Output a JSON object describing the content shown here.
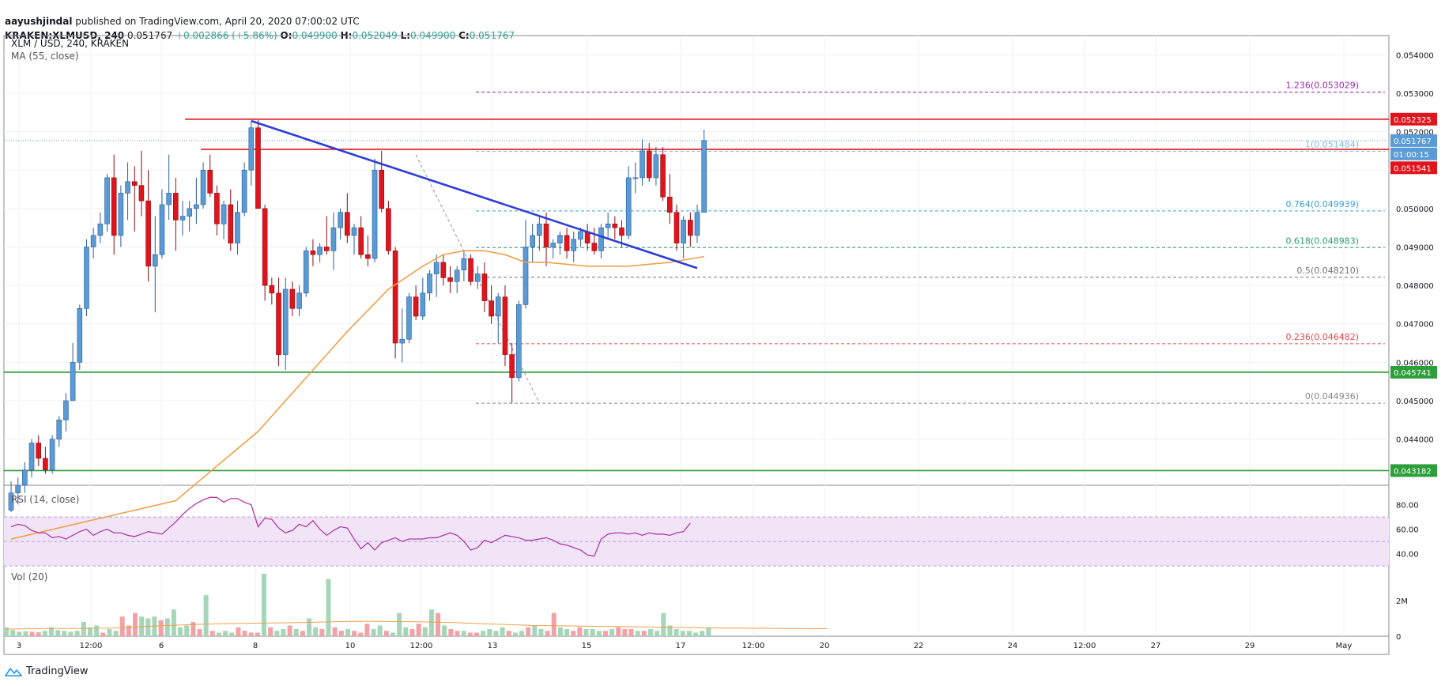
{
  "header": {
    "author": "aayushjindal",
    "published": " published on TradingView.com, April 20, 2020 07:00:02 UTC",
    "symbol": "KRAKEN:XLMUSD, 240",
    "price": " 0.051767 ",
    "change": "+0.002866 (+5.86%)",
    "o_label": "O:",
    "o_value": "0.049900",
    "h_label": "H:",
    "h_value": "0.052049",
    "l_label": "L:",
    "l_value": "0.049900",
    "c_label": "C:",
    "c_value": "0.051767"
  },
  "footer": {
    "brand": "TradingView"
  },
  "colors": {
    "up": "#5b9bd5",
    "down": "#e0141c",
    "ma": "#f0a04b",
    "trendline": "#2d3ed6",
    "resistance": "#e0141c",
    "support": "#2e9e3a",
    "rsi_line": "#b03aa8",
    "rsi_band": "#f1e4f7",
    "vol_up": "#a5d6b8",
    "vol_down": "#f0a3a6"
  },
  "chart_data": [
    {
      "type": "candlestick",
      "title": "XLM / USD, 240, KRAKEN",
      "indicator": "MA (55, close)",
      "ylim": [
        0.0428,
        0.0545
      ],
      "y_ticks": [
        "0.054000",
        "0.053000",
        "0.052000",
        "0.051000",
        "0.050000",
        "0.049000",
        "0.048000",
        "0.047000",
        "0.046000",
        "0.045000",
        "0.044000"
      ],
      "x_ticks": [
        "3",
        "12:00",
        "6",
        "8",
        "10",
        "12:00",
        "13",
        "15",
        "17",
        "12:00",
        "20",
        "22",
        "24",
        "12:00",
        "27",
        "29",
        "May"
      ],
      "candles": [
        [
          0.04215,
          0.0429,
          0.0421,
          0.0426
        ],
        [
          0.0426,
          0.043,
          0.0423,
          0.0428
        ],
        [
          0.0428,
          0.0434,
          0.0426,
          0.0432
        ],
        [
          0.0432,
          0.044,
          0.043,
          0.0439
        ],
        [
          0.0439,
          0.0441,
          0.0433,
          0.0435
        ],
        [
          0.0435,
          0.0438,
          0.0431,
          0.0432
        ],
        [
          0.0432,
          0.0441,
          0.0431,
          0.044
        ],
        [
          0.044,
          0.0446,
          0.0438,
          0.0445
        ],
        [
          0.0445,
          0.0452,
          0.0442,
          0.045
        ],
        [
          0.045,
          0.0465,
          0.045,
          0.046
        ],
        [
          0.046,
          0.0475,
          0.0458,
          0.0474
        ],
        [
          0.0474,
          0.0492,
          0.0472,
          0.049
        ],
        [
          0.049,
          0.0495,
          0.0487,
          0.0493
        ],
        [
          0.0493,
          0.0499,
          0.0491,
          0.0496
        ],
        [
          0.0496,
          0.0509,
          0.0494,
          0.0508
        ],
        [
          0.0508,
          0.0514,
          0.0488,
          0.0493
        ],
        [
          0.0493,
          0.0506,
          0.049,
          0.0504
        ],
        [
          0.0504,
          0.0512,
          0.0497,
          0.0507
        ],
        [
          0.0507,
          0.0511,
          0.0494,
          0.0506
        ],
        [
          0.0506,
          0.0515,
          0.0498,
          0.0502
        ],
        [
          0.0502,
          0.051,
          0.0481,
          0.0485
        ],
        [
          0.0485,
          0.0498,
          0.0473,
          0.0488
        ],
        [
          0.0488,
          0.0505,
          0.0487,
          0.0501
        ],
        [
          0.0501,
          0.0514,
          0.0497,
          0.0504
        ],
        [
          0.0504,
          0.0508,
          0.0489,
          0.0497
        ],
        [
          0.0497,
          0.0502,
          0.0493,
          0.0498
        ],
        [
          0.0498,
          0.0502,
          0.0494,
          0.05
        ],
        [
          0.05,
          0.0508,
          0.0496,
          0.0501
        ],
        [
          0.0501,
          0.0512,
          0.05,
          0.051
        ],
        [
          0.051,
          0.0514,
          0.0503,
          0.0504
        ],
        [
          0.0504,
          0.0506,
          0.0493,
          0.0496
        ],
        [
          0.0496,
          0.0502,
          0.0492,
          0.0501
        ],
        [
          0.0501,
          0.0505,
          0.0489,
          0.0491
        ],
        [
          0.0491,
          0.0502,
          0.0488,
          0.0499
        ],
        [
          0.0499,
          0.0512,
          0.0498,
          0.051
        ],
        [
          0.051,
          0.05228,
          0.0506,
          0.0521
        ],
        [
          0.0521,
          0.0523,
          0.05,
          0.05
        ],
        [
          0.05,
          0.0501,
          0.0476,
          0.048
        ],
        [
          0.048,
          0.0482,
          0.0475,
          0.0478
        ],
        [
          0.0478,
          0.0482,
          0.0459,
          0.0462
        ],
        [
          0.0462,
          0.0482,
          0.0458,
          0.0479
        ],
        [
          0.0479,
          0.0481,
          0.0472,
          0.0474
        ],
        [
          0.0474,
          0.048,
          0.0472,
          0.0478
        ],
        [
          0.0478,
          0.049,
          0.0477,
          0.0489
        ],
        [
          0.0489,
          0.0492,
          0.0485,
          0.0488
        ],
        [
          0.0488,
          0.0491,
          0.0486,
          0.049
        ],
        [
          0.049,
          0.0498,
          0.0488,
          0.0489
        ],
        [
          0.0489,
          0.0499,
          0.0484,
          0.0495
        ],
        [
          0.0495,
          0.05,
          0.0492,
          0.0499
        ],
        [
          0.0499,
          0.0504,
          0.0491,
          0.0493
        ],
        [
          0.0493,
          0.0496,
          0.0488,
          0.0495
        ],
        [
          0.0495,
          0.0498,
          0.0487,
          0.0488
        ],
        [
          0.0488,
          0.0493,
          0.0485,
          0.0487
        ],
        [
          0.0487,
          0.0513,
          0.0486,
          0.051
        ],
        [
          0.051,
          0.0515,
          0.0499,
          0.05
        ],
        [
          0.05,
          0.0502,
          0.0488,
          0.0489
        ],
        [
          0.0489,
          0.049,
          0.0461,
          0.0465
        ],
        [
          0.0465,
          0.0474,
          0.046,
          0.0466
        ],
        [
          0.0466,
          0.0478,
          0.0465,
          0.0477
        ],
        [
          0.0477,
          0.048,
          0.0471,
          0.0472
        ],
        [
          0.0472,
          0.0482,
          0.0471,
          0.0478
        ],
        [
          0.0478,
          0.0484,
          0.0476,
          0.0483
        ],
        [
          0.0483,
          0.0488,
          0.0477,
          0.0486
        ],
        [
          0.0486,
          0.0488,
          0.048,
          0.0482
        ],
        [
          0.0482,
          0.0485,
          0.0478,
          0.0481
        ],
        [
          0.0481,
          0.0485,
          0.0478,
          0.0484
        ],
        [
          0.0484,
          0.0489,
          0.0481,
          0.0487
        ],
        [
          0.0487,
          0.0488,
          0.048,
          0.0481
        ],
        [
          0.0481,
          0.0485,
          0.0479,
          0.0483
        ],
        [
          0.0483,
          0.0486,
          0.0473,
          0.0476
        ],
        [
          0.0476,
          0.048,
          0.047,
          0.0472
        ],
        [
          0.0472,
          0.0478,
          0.0465,
          0.0477
        ],
        [
          0.0477,
          0.048,
          0.0459,
          0.0462
        ],
        [
          0.0462,
          0.0465,
          0.04494,
          0.0456
        ],
        [
          0.0456,
          0.0476,
          0.0455,
          0.0475
        ],
        [
          0.0475,
          0.0497,
          0.0474,
          0.049
        ],
        [
          0.049,
          0.0496,
          0.0486,
          0.0493
        ],
        [
          0.0493,
          0.0498,
          0.0489,
          0.0496
        ],
        [
          0.0496,
          0.0499,
          0.0485,
          0.049
        ],
        [
          0.049,
          0.0492,
          0.0487,
          0.0491
        ],
        [
          0.0491,
          0.0494,
          0.0488,
          0.0493
        ],
        [
          0.0493,
          0.0495,
          0.0487,
          0.0489
        ],
        [
          0.0489,
          0.0494,
          0.0486,
          0.0492
        ],
        [
          0.0492,
          0.0495,
          0.049,
          0.0494
        ],
        [
          0.0494,
          0.0496,
          0.0489,
          0.0491
        ],
        [
          0.0491,
          0.0495,
          0.0488,
          0.0489
        ],
        [
          0.0489,
          0.0496,
          0.0487,
          0.0495
        ],
        [
          0.0495,
          0.0499,
          0.0492,
          0.0496
        ],
        [
          0.0496,
          0.0498,
          0.0492,
          0.0495
        ],
        [
          0.0495,
          0.0497,
          0.049,
          0.0493
        ],
        [
          0.0493,
          0.0511,
          0.0492,
          0.0508
        ],
        [
          0.0508,
          0.0512,
          0.0504,
          0.0508
        ],
        [
          0.0508,
          0.0518,
          0.0506,
          0.0515
        ],
        [
          0.0515,
          0.0517,
          0.0507,
          0.0508
        ],
        [
          0.0508,
          0.0516,
          0.0506,
          0.0514
        ],
        [
          0.0514,
          0.0516,
          0.0502,
          0.0503
        ],
        [
          0.0503,
          0.0509,
          0.0496,
          0.0499
        ],
        [
          0.0499,
          0.0501,
          0.0489,
          0.0491
        ],
        [
          0.0491,
          0.0498,
          0.0487,
          0.0497
        ],
        [
          0.0497,
          0.0499,
          0.049,
          0.0493
        ],
        [
          0.0493,
          0.0501,
          0.0491,
          0.0499
        ],
        [
          0.0499,
          0.05205,
          0.0499,
          0.05177
        ]
      ],
      "ma_55": [
        [
          0,
          0.0414
        ],
        [
          24,
          0.0424
        ],
        [
          36,
          0.0442
        ],
        [
          44,
          0.0458
        ],
        [
          49,
          0.0468
        ],
        [
          55,
          0.0479
        ],
        [
          60,
          0.0485
        ],
        [
          63,
          0.0488
        ],
        [
          66,
          0.0489
        ],
        [
          69,
          0.0489
        ],
        [
          72,
          0.0488
        ],
        [
          75,
          0.0486
        ],
        [
          78,
          0.0486
        ],
        [
          84,
          0.0485
        ],
        [
          90,
          0.0485
        ],
        [
          96,
          0.0486
        ],
        [
          101,
          0.04875
        ]
      ],
      "trendline": {
        "from": [
          35,
          0.05228
        ],
        "to": [
          100,
          0.04845
        ]
      },
      "diagonal": {
        "from": [
          59,
          0.0514
        ],
        "to": [
          77,
          0.04494
        ]
      },
      "horizontal_levels": [
        {
          "price": 0.052325,
          "label": "0.052325",
          "color": "#e0141c"
        },
        {
          "price": 0.05154,
          "label": "0.051541",
          "color": "#e0141c"
        },
        {
          "price": 0.045741,
          "label": "0.045741",
          "color": "#2e9e3a"
        },
        {
          "price": 0.043182,
          "label": "0.043182",
          "color": "#2e9e3a"
        }
      ],
      "fib_levels": [
        {
          "ratio": "1.236",
          "price": 0.053029,
          "label": "1.236(0.053029)",
          "color": "#9c27b0"
        },
        {
          "ratio": "1",
          "price": 0.051484,
          "label": "1(0.051484)",
          "color": "#7fbde8"
        },
        {
          "ratio": "0.764",
          "price": 0.049939,
          "label": "0.764(0.049939)",
          "color": "#3aa0d8"
        },
        {
          "ratio": "0.618",
          "price": 0.048983,
          "label": "0.618(0.048983)",
          "color": "#2e9e6a"
        },
        {
          "ratio": "0.5",
          "price": 0.04821,
          "label": "0.5(0.048210)",
          "color": "#777777"
        },
        {
          "ratio": "0.236",
          "price": 0.046482,
          "label": "0.236(0.046482)",
          "color": "#e04848"
        },
        {
          "ratio": "0",
          "price": 0.044936,
          "label": "0(0.044936)",
          "color": "#888888"
        }
      ],
      "price_tags": [
        {
          "text": "0.052325",
          "price": 0.052325,
          "bg": "#e0141c"
        },
        {
          "text": "0.051767",
          "price": 0.051767,
          "bg": "#5b9bd5"
        },
        {
          "text": "01:00:15",
          "price": 0.05142,
          "bg": "#5b9bd5"
        },
        {
          "text": "0.051541",
          "price": 0.05106,
          "bg": "#e0141c"
        },
        {
          "text": "0.045741",
          "price": 0.045741,
          "bg": "#2e9e3a"
        },
        {
          "text": "0.043182",
          "price": 0.043182,
          "bg": "#2e9e3a"
        }
      ],
      "current_price": 0.051767
    },
    {
      "type": "line",
      "title": "RSI (14, close)",
      "ylim": [
        32,
        92
      ],
      "band": [
        30,
        70
      ],
      "y_ticks": [
        "80.00",
        "60.00",
        "40.00"
      ],
      "values": [
        62,
        64,
        63,
        59,
        57,
        57,
        53,
        54,
        52,
        55,
        58,
        60,
        55,
        58,
        60,
        57,
        57,
        55,
        54,
        56,
        58,
        57,
        56,
        61,
        66,
        72,
        77,
        81,
        84,
        86,
        86,
        82,
        85,
        85,
        82,
        80,
        62,
        69,
        68,
        61,
        57,
        59,
        64,
        62,
        67,
        60,
        55,
        59,
        62,
        61,
        52,
        44,
        49,
        43,
        49,
        51,
        53,
        50,
        52,
        52,
        52,
        53,
        53,
        55,
        57,
        55,
        50,
        43,
        45,
        51,
        49,
        52,
        55,
        54,
        53,
        51,
        51,
        52,
        53,
        51,
        48,
        47,
        45,
        43,
        39,
        38,
        52,
        56,
        57,
        57,
        56,
        57,
        55,
        57,
        56,
        56,
        55,
        57,
        58,
        65
      ]
    },
    {
      "type": "bar",
      "title": "Vol (20)",
      "y_ticks": [
        "2M",
        "0"
      ],
      "ylim": [
        0,
        3500000
      ],
      "values": [
        500000,
        350000,
        250000,
        280000,
        250000,
        220000,
        300000,
        500000,
        350000,
        300000,
        250000,
        300000,
        800000,
        500000,
        600000,
        200000,
        400000,
        300000,
        1100000,
        600000,
        1300000,
        1100000,
        1000000,
        1100000,
        900000,
        1000000,
        1500000,
        500000,
        600000,
        800000,
        400000,
        2300000,
        300000,
        200000,
        300000,
        200000,
        500000,
        300000,
        200000,
        200000,
        3500000,
        500000,
        300000,
        400000,
        600000,
        400000,
        300000,
        1000000,
        500000,
        400000,
        3200000,
        500000,
        300000,
        400000,
        300000,
        200000,
        700000,
        400000,
        600000,
        300000,
        200000,
        1300000,
        500000,
        400000,
        700000,
        500000,
        1500000,
        1300000,
        600000,
        400000,
        300000,
        300000,
        200000,
        200000,
        300000,
        400000,
        300000,
        500000,
        300000,
        200000,
        300000,
        500000,
        600000,
        400000,
        300000,
        1300000,
        500000,
        400000,
        300000,
        500000,
        400000,
        400000,
        300000,
        300000,
        400000,
        500000,
        400000,
        400000,
        300000,
        300000,
        400000,
        300000,
        1300000,
        600000,
        400000,
        300000,
        300000,
        200000,
        300000,
        500000
      ],
      "ma_20": [
        400000,
        420000,
        430000,
        440000,
        460000,
        520000,
        600000,
        650000,
        700000,
        720000,
        740000,
        760000,
        800000,
        830000,
        830000,
        820000,
        800000,
        760000,
        700000,
        650000,
        600000,
        580000,
        560000,
        540000,
        520000,
        500000,
        480000,
        460000,
        450000,
        440000,
        430000,
        420000
      ]
    }
  ]
}
